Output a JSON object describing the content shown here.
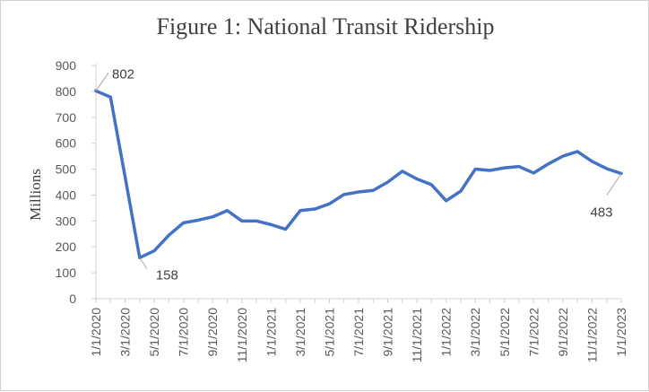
{
  "chart_data": {
    "type": "line",
    "title": "Figure 1: National Transit Ridership",
    "xlabel": "",
    "ylabel": "Millions",
    "ylim": [
      0,
      900
    ],
    "yticks": [
      0,
      100,
      200,
      300,
      400,
      500,
      600,
      700,
      800,
      900
    ],
    "x": [
      "1/1/2020",
      "2/1/2020",
      "3/1/2020",
      "4/1/2020",
      "5/1/2020",
      "6/1/2020",
      "7/1/2020",
      "8/1/2020",
      "9/1/2020",
      "10/1/2020",
      "11/1/2020",
      "12/1/2020",
      "1/1/2021",
      "2/1/2021",
      "3/1/2021",
      "4/1/2021",
      "5/1/2021",
      "6/1/2021",
      "7/1/2021",
      "8/1/2021",
      "9/1/2021",
      "10/1/2021",
      "11/1/2021",
      "12/1/2021",
      "1/1/2022",
      "2/1/2022",
      "3/1/2022",
      "4/1/2022",
      "5/1/2022",
      "6/1/2022",
      "7/1/2022",
      "8/1/2022",
      "9/1/2022",
      "10/1/2022",
      "11/1/2022",
      "12/1/2022",
      "1/1/2023"
    ],
    "xtick_labels": [
      "1/1/2020",
      "3/1/2020",
      "5/1/2020",
      "7/1/2020",
      "9/1/2020",
      "11/1/2020",
      "1/1/2021",
      "3/1/2021",
      "5/1/2021",
      "7/1/2021",
      "9/1/2021",
      "11/1/2021",
      "1/1/2022",
      "3/1/2022",
      "5/1/2022",
      "7/1/2022",
      "9/1/2022",
      "11/1/2022",
      "1/1/2023"
    ],
    "series": [
      {
        "color": "#4472c4",
        "values": [
          802,
          778,
          470,
          158,
          185,
          245,
          293,
          303,
          316,
          340,
          300,
          300,
          286,
          268,
          340,
          346,
          366,
          402,
          412,
          418,
          450,
          492,
          462,
          440,
          378,
          415,
          500,
          495,
          505,
          510,
          485,
          520,
          550,
          568,
          530,
          502,
          483
        ]
      }
    ],
    "annotations": [
      {
        "index": 0,
        "label": "802"
      },
      {
        "index": 3,
        "label": "158"
      },
      {
        "index": 36,
        "label": "483"
      }
    ],
    "grid": false,
    "legend": "none"
  }
}
